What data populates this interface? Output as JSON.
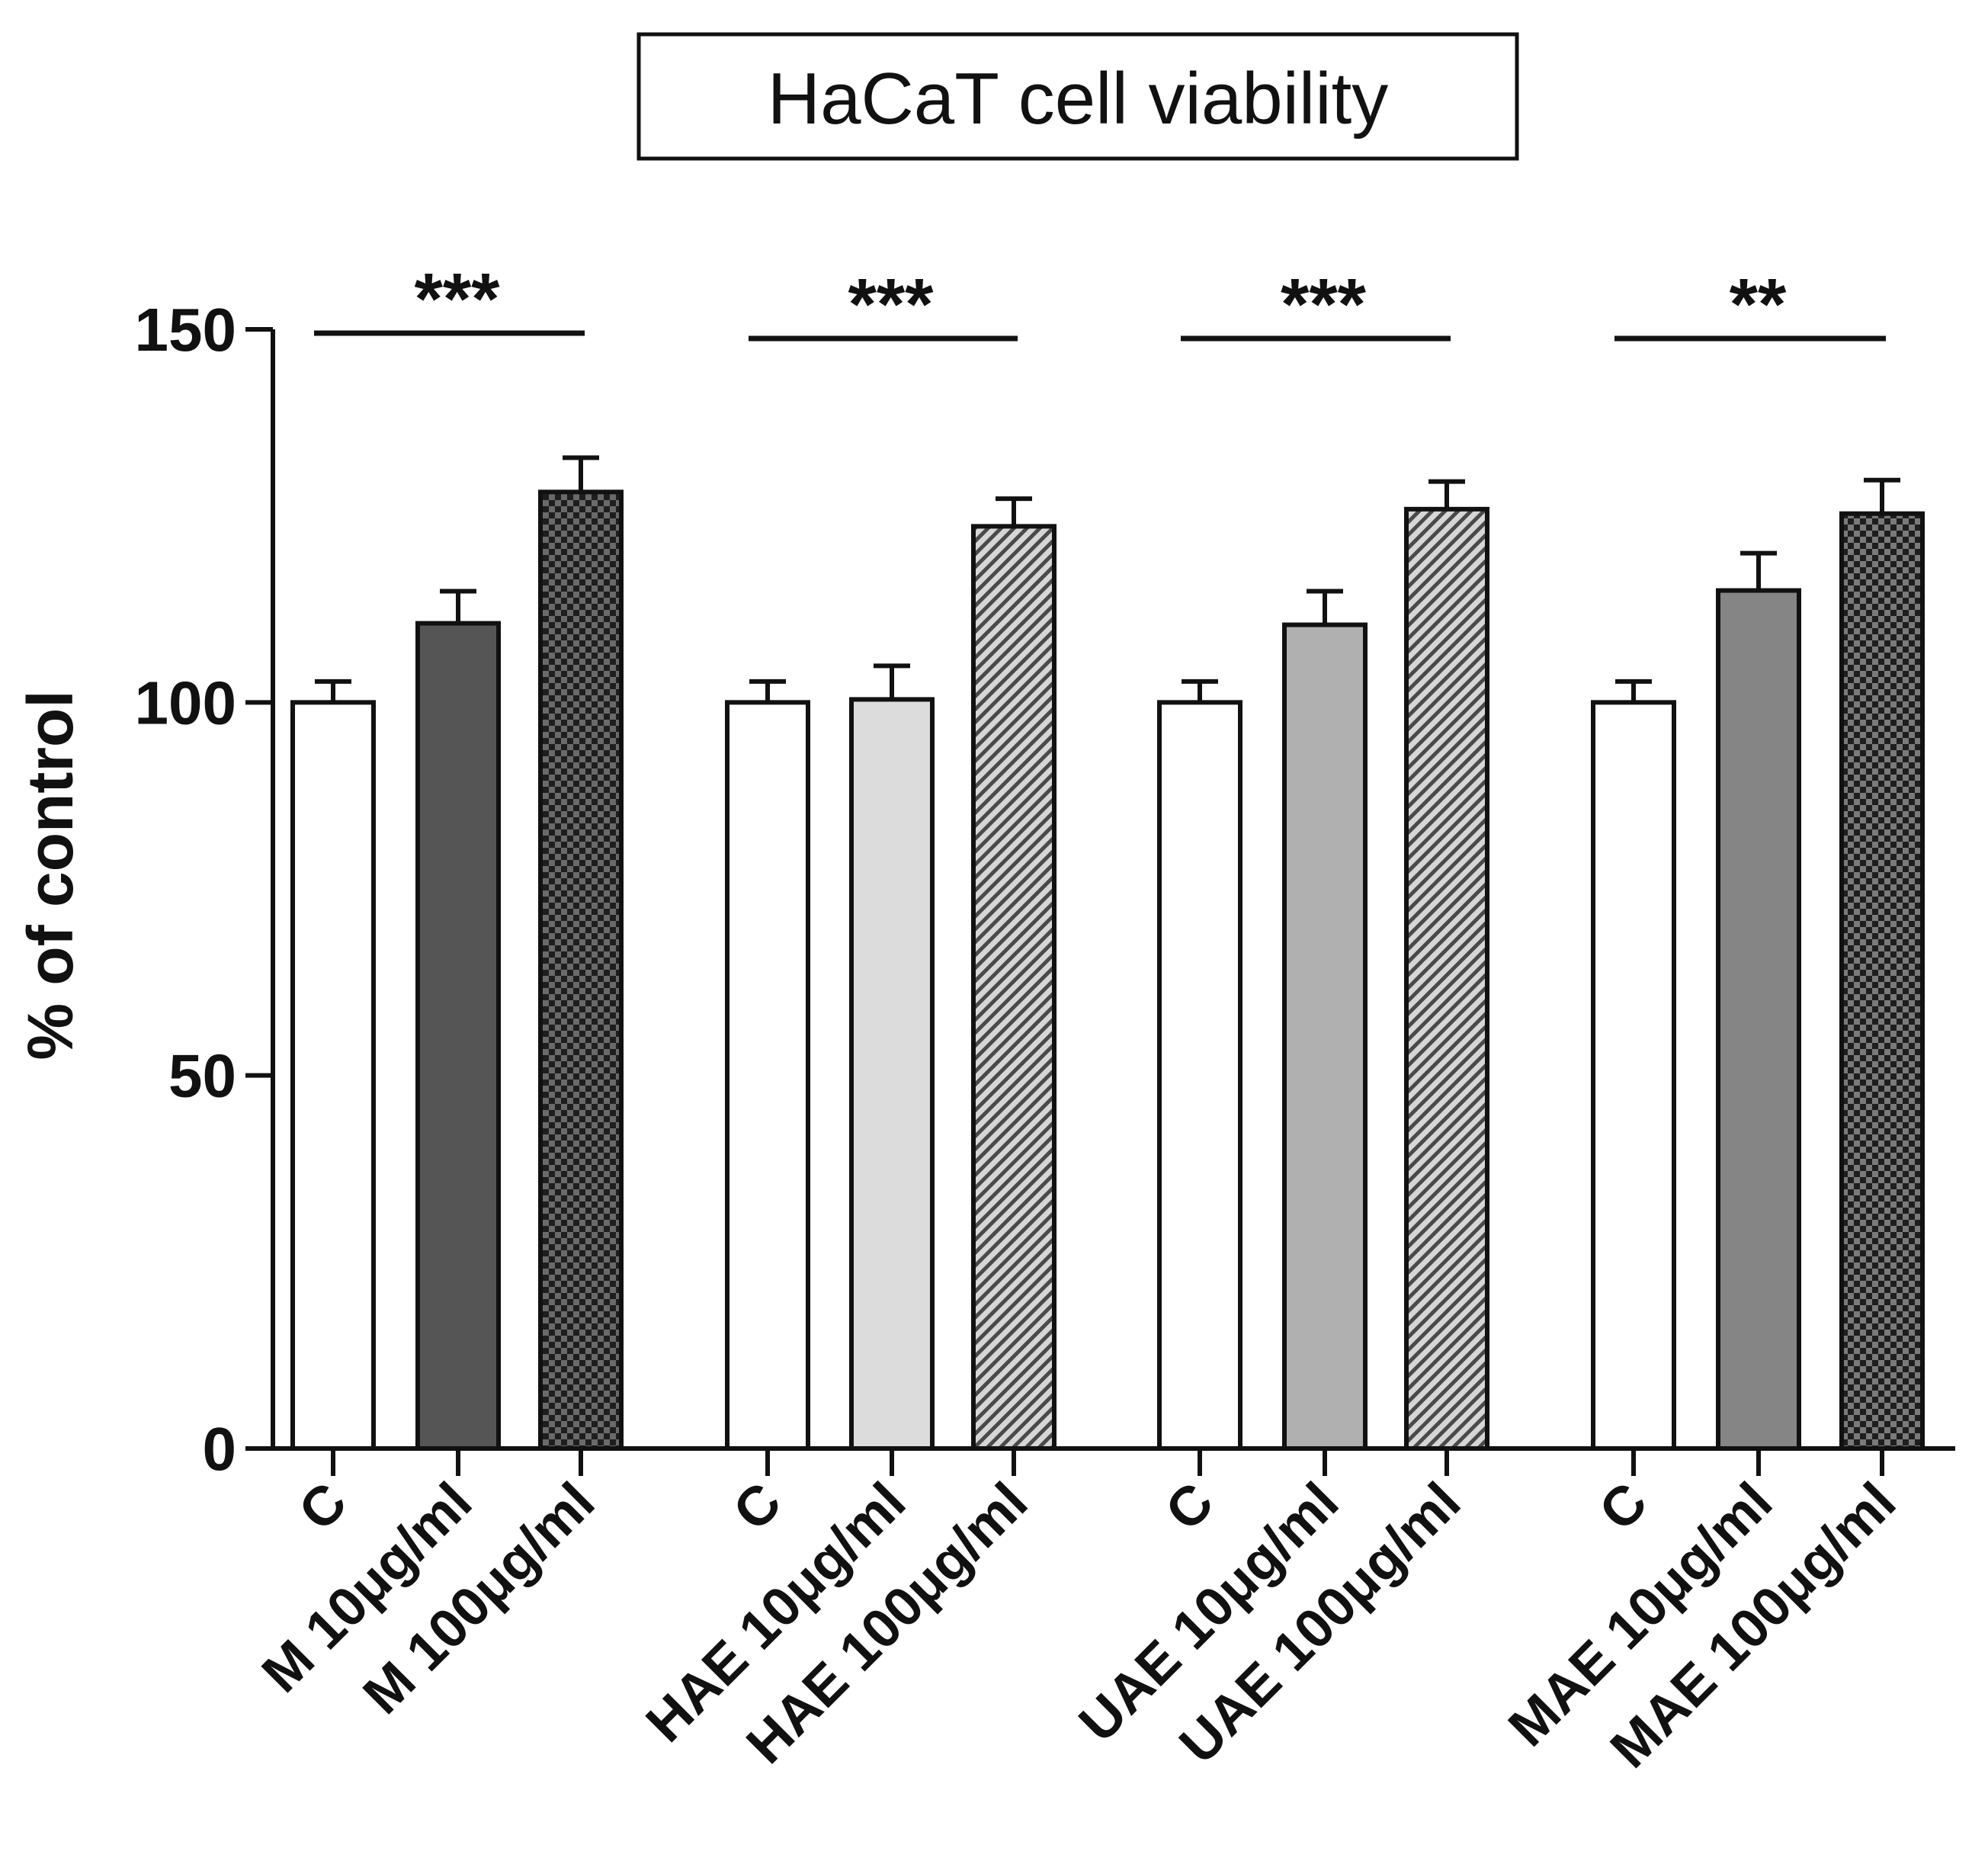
{
  "chart_data": {
    "type": "bar",
    "title": "HaCaT cell viability",
    "ylabel": "% of control",
    "ylim": [
      0,
      150
    ],
    "yticks": [
      "0",
      "50",
      "100",
      "150"
    ],
    "grid": false,
    "legend": "none",
    "categories": [
      "C",
      "M 10μg/ml",
      "M 100μg/ml",
      "C",
      "HAE 10μg/ml",
      "HAE 100μg/ml",
      "C",
      "UAE 10μg/ml",
      "UAE 100μg/ml",
      "C",
      "MAE 10μg/ml",
      "MAE 100μg/ml"
    ],
    "groups": [
      {
        "categories": [
          0,
          1,
          2
        ],
        "significance": "***"
      },
      {
        "categories": [
          3,
          4,
          5
        ],
        "significance": "***"
      },
      {
        "categories": [
          6,
          7,
          8
        ],
        "significance": "***"
      },
      {
        "categories": [
          9,
          10,
          11
        ],
        "significance": "**"
      }
    ],
    "values": [
      100,
      110.6,
      128.2,
      100,
      100.4,
      123.6,
      100,
      110.4,
      125.9,
      100,
      115,
      125.3
    ],
    "errors": [
      2.8,
      4.3,
      4.6,
      2.8,
      4.5,
      3.7,
      2.8,
      4.5,
      3.7,
      2.8,
      5.0,
      4.5
    ],
    "fills": [
      {
        "style": "solid",
        "color": "#ffffff"
      },
      {
        "style": "solid",
        "color": "#555555"
      },
      {
        "style": "checker",
        "color": "#1e1e1e",
        "alt": "#6a6a6a"
      },
      {
        "style": "solid",
        "color": "#ffffff"
      },
      {
        "style": "solid",
        "color": "#dcdcdc"
      },
      {
        "style": "hatch",
        "color": "#d6d6d6",
        "alt": "#4a4a4a"
      },
      {
        "style": "solid",
        "color": "#ffffff"
      },
      {
        "style": "solid",
        "color": "#b0b0b0"
      },
      {
        "style": "hatch",
        "color": "#d6d6d6",
        "alt": "#4a4a4a"
      },
      {
        "style": "solid",
        "color": "#ffffff"
      },
      {
        "style": "solid",
        "color": "#858585"
      },
      {
        "style": "checker",
        "color": "#1e1e1e",
        "alt": "#7a7a7a"
      }
    ]
  }
}
